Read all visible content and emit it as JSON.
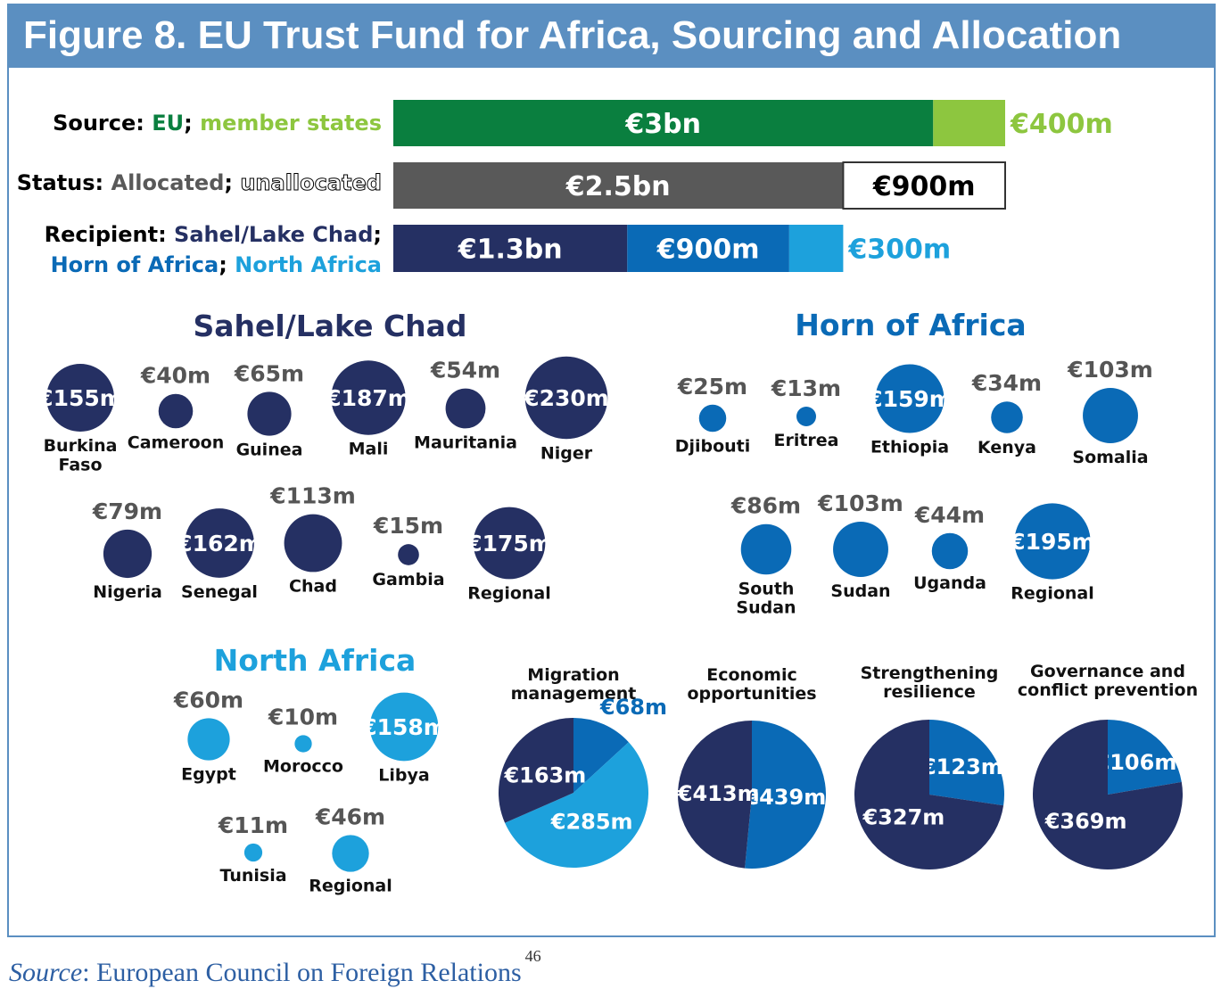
{
  "title": "Figure 8. EU Trust Fund for Africa, Sourcing and Allocation",
  "source_note": {
    "label": "Source",
    "text": ": European Council on Foreign Relations",
    "ref": "46"
  },
  "colors": {
    "eu_green": "#0a7f3f",
    "member_green": "#8dc63f",
    "allocated_grey": "#595959",
    "sahel_navy": "#253063",
    "horn_blue": "#0a6ab6",
    "north_light": "#1da1dc",
    "title_bar": "#5b8fc1"
  },
  "chart_data": [
    {
      "type": "bar",
      "orientation": "horizontal-stacked",
      "title": "",
      "rows": [
        {
          "label": "Source",
          "segments": [
            {
              "name": "EU",
              "value": 3000,
              "label": "€3bn",
              "color": "#0a7f3f"
            },
            {
              "name": "member states",
              "value": 400,
              "label": "€400m",
              "color": "#8dc63f"
            }
          ]
        },
        {
          "label": "Status",
          "segments": [
            {
              "name": "Allocated",
              "value": 2500,
              "label": "€2.5bn",
              "color": "#595959"
            },
            {
              "name": "unallocated",
              "value": 900,
              "label": "€900m",
              "color": "#ffffff"
            }
          ]
        },
        {
          "label": "Recipient",
          "segments": [
            {
              "name": "Sahel/Lake Chad",
              "value": 1300,
              "label": "€1.3bn",
              "color": "#253063"
            },
            {
              "name": "Horn of Africa",
              "value": 900,
              "label": "€900m",
              "color": "#0a6ab6"
            },
            {
              "name": "North Africa",
              "value": 300,
              "label": "€300m",
              "color": "#1da1dc"
            }
          ]
        }
      ]
    },
    {
      "type": "bubble",
      "title": "Sahel/Lake Chad",
      "unit": "€m",
      "color": "#253063",
      "points": [
        {
          "name": "Burkina Faso",
          "value": 155,
          "label": "€155m"
        },
        {
          "name": "Cameroon",
          "value": 40,
          "label": "€40m"
        },
        {
          "name": "Guinea",
          "value": 65,
          "label": "€65m"
        },
        {
          "name": "Mali",
          "value": 187,
          "label": "€187m"
        },
        {
          "name": "Mauritania",
          "value": 54,
          "label": "€54m"
        },
        {
          "name": "Niger",
          "value": 230,
          "label": "€230m"
        },
        {
          "name": "Nigeria",
          "value": 79,
          "label": "€79m"
        },
        {
          "name": "Senegal",
          "value": 162,
          "label": "€162m"
        },
        {
          "name": "Chad",
          "value": 113,
          "label": "€113m"
        },
        {
          "name": "Gambia",
          "value": 15,
          "label": "€15m"
        },
        {
          "name": "Regional",
          "value": 175,
          "label": "€175m"
        }
      ]
    },
    {
      "type": "bubble",
      "title": "Horn of Africa",
      "unit": "€m",
      "color": "#0a6ab6",
      "points": [
        {
          "name": "Djibouti",
          "value": 25,
          "label": "€25m"
        },
        {
          "name": "Eritrea",
          "value": 13,
          "label": "€13m"
        },
        {
          "name": "Ethiopia",
          "value": 159,
          "label": "€159m"
        },
        {
          "name": "Kenya",
          "value": 34,
          "label": "€34m"
        },
        {
          "name": "Somalia",
          "value": 103,
          "label": "€103m"
        },
        {
          "name": "South Sudan",
          "value": 86,
          "label": "€86m"
        },
        {
          "name": "Sudan",
          "value": 103,
          "label": "€103m"
        },
        {
          "name": "Uganda",
          "value": 44,
          "label": "€44m"
        },
        {
          "name": "Regional",
          "value": 195,
          "label": "€195m"
        }
      ]
    },
    {
      "type": "bubble",
      "title": "North Africa",
      "unit": "€m",
      "color": "#1da1dc",
      "points": [
        {
          "name": "Egypt",
          "value": 60,
          "label": "€60m"
        },
        {
          "name": "Morocco",
          "value": 10,
          "label": "€10m"
        },
        {
          "name": "Libya",
          "value": 158,
          "label": "€158m"
        },
        {
          "name": "Tunisia",
          "value": 11,
          "label": "€11m"
        },
        {
          "name": "Regional",
          "value": 46,
          "label": "€46m"
        }
      ]
    },
    {
      "type": "pie",
      "title": "Migration management",
      "slices": [
        {
          "region": "Horn of Africa",
          "value": 68,
          "label": "€68m",
          "color": "#0a6ab6"
        },
        {
          "region": "North Africa",
          "value": 285,
          "label": "€285m",
          "color": "#1da1dc"
        },
        {
          "region": "Sahel/Lake Chad",
          "value": 163,
          "label": "€163m",
          "color": "#253063"
        }
      ]
    },
    {
      "type": "pie",
      "title": "Economic opportunities",
      "slices": [
        {
          "region": "Horn of Africa",
          "value": 439,
          "label": "€439m",
          "color": "#0a6ab6"
        },
        {
          "region": "Sahel/Lake Chad",
          "value": 413,
          "label": "€413m",
          "color": "#253063"
        }
      ]
    },
    {
      "type": "pie",
      "title": "Strengthening resilience",
      "slices": [
        {
          "region": "Horn of Africa",
          "value": 123,
          "label": "€123m",
          "color": "#0a6ab6"
        },
        {
          "region": "Sahel/Lake Chad",
          "value": 327,
          "label": "€327m",
          "color": "#253063"
        }
      ]
    },
    {
      "type": "pie",
      "title": "Governance and conflict prevention",
      "slices": [
        {
          "region": "Horn of Africa",
          "value": 106,
          "label": "€106m",
          "color": "#0a6ab6"
        },
        {
          "region": "Sahel/Lake Chad",
          "value": 369,
          "label": "€369m",
          "color": "#253063"
        }
      ]
    }
  ]
}
